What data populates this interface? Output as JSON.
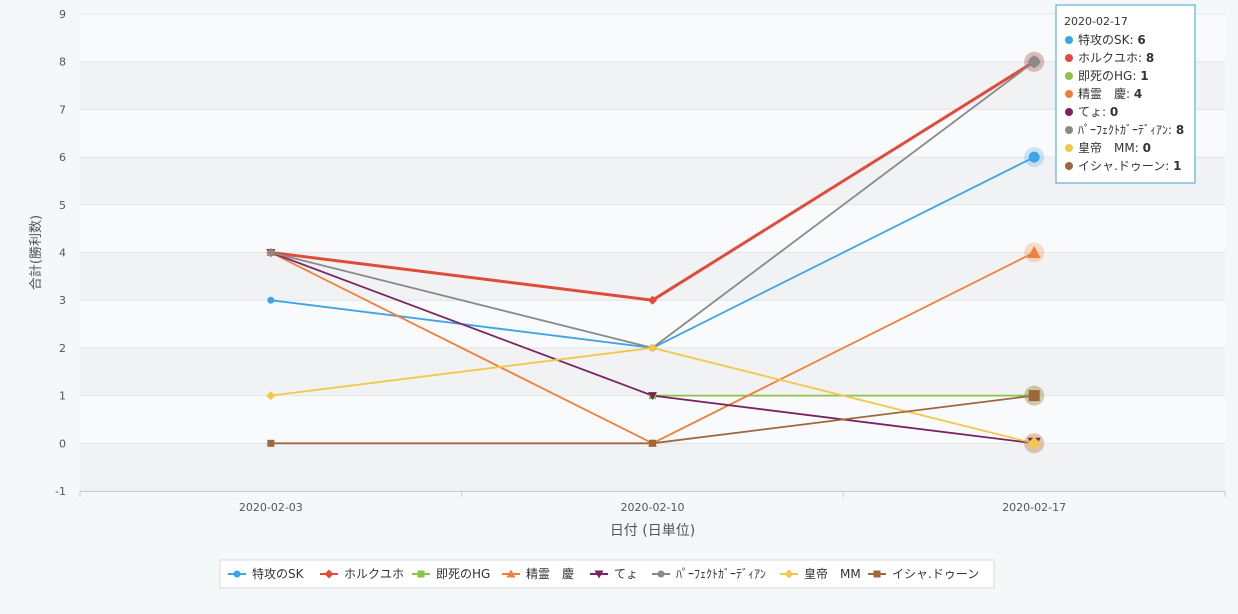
{
  "chart_data": {
    "type": "line",
    "xlabel": "日付 (日単位)",
    "ylabel": "合計(勝利数)",
    "ylim": [
      -1,
      9
    ],
    "yticks": [
      -1,
      0,
      1,
      2,
      3,
      4,
      5,
      6,
      7,
      8,
      9
    ],
    "categories": [
      "2020-02-03",
      "2020-02-10",
      "2020-02-17"
    ],
    "grid": true,
    "legend_position": "bottom",
    "series": [
      {
        "name": "特攻のSK",
        "values": [
          3,
          2,
          6
        ],
        "color": "#3ea4e8",
        "marker": "circle"
      },
      {
        "name": "ホルクユホ",
        "values": [
          4,
          3,
          8
        ],
        "color": "#e04c3c",
        "marker": "diamond"
      },
      {
        "name": "即死のHG",
        "values": [
          null,
          1,
          1
        ],
        "color": "#8bc34a",
        "marker": "square"
      },
      {
        "name": "精霊　慶",
        "values": [
          4,
          0,
          4
        ],
        "color": "#f07f3c",
        "marker": "triangle"
      },
      {
        "name": "てょ",
        "values": [
          4,
          1,
          0
        ],
        "color": "#7a2462",
        "marker": "triangle-down"
      },
      {
        "name": "ﾊﾟｰﾌｪｸﾄｶﾞｰﾃﾞｨｱﾝ",
        "values": [
          4,
          2,
          8
        ],
        "color": "#8a8a8a",
        "marker": "circle"
      },
      {
        "name": "皇帝　MM",
        "values": [
          1,
          2,
          0
        ],
        "color": "#f2c84b",
        "marker": "diamond"
      },
      {
        "name": "イシャ.ドゥーン",
        "values": [
          0,
          0,
          1
        ],
        "color": "#a0673e",
        "marker": "square"
      }
    ],
    "tooltip": {
      "title": "2020-02-17",
      "rows": [
        {
          "name": "特攻のSK",
          "value": "6"
        },
        {
          "name": "ホルクユホ",
          "value": "8"
        },
        {
          "name": "即死のHG",
          "value": "1"
        },
        {
          "name": "精霊　慶",
          "value": "4"
        },
        {
          "name": "てょ",
          "value": "0"
        },
        {
          "name": "ﾊﾟｰﾌｪｸﾄｶﾞｰﾃﾞｨｱﾝ",
          "value": "8"
        },
        {
          "name": "皇帝　MM",
          "value": "0"
        },
        {
          "name": "イシャ.ドゥーン",
          "value": "1"
        }
      ]
    }
  }
}
